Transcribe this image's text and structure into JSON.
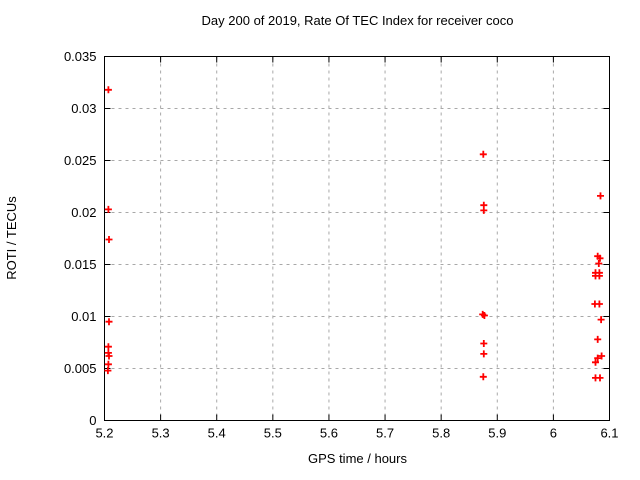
{
  "chart_data": {
    "type": "scatter",
    "title": "Day 200 of 2019, Rate Of TEC Index for receiver coco",
    "xlabel": "GPS time / hours",
    "ylabel": "ROTI / TECUs",
    "xlim": [
      5.2,
      6.1
    ],
    "ylim": [
      0,
      0.035
    ],
    "xticks": {
      "values": [
        5.2,
        5.3,
        5.4,
        5.5,
        5.6,
        5.7,
        5.8,
        5.9,
        6.0,
        6.1
      ],
      "labels": [
        "5.2",
        "5.3",
        "5.4",
        "5.5",
        "5.6",
        "5.7",
        "5.8",
        "5.9",
        "6",
        "6.1"
      ]
    },
    "yticks": {
      "values": [
        0,
        0.005,
        0.01,
        0.015,
        0.02,
        0.025,
        0.03,
        0.035
      ],
      "labels": [
        "0",
        "0.005",
        "0.01",
        "0.015",
        "0.02",
        "0.025",
        "0.03",
        "0.035"
      ]
    },
    "grid": true,
    "grid_style": "dashed",
    "legend_position": "none",
    "marker": "plus",
    "marker_color": "#ff0000",
    "grid_color": "#a8a8a8",
    "axis_color": "#000000",
    "background_color": "#ffffff",
    "series": [
      {
        "name": "ROTI",
        "points": [
          [
            5.207,
            0.0318
          ],
          [
            5.207,
            0.0203
          ],
          [
            5.208,
            0.0174
          ],
          [
            5.208,
            0.0095
          ],
          [
            5.207,
            0.0071
          ],
          [
            5.207,
            0.0065
          ],
          [
            5.208,
            0.0062
          ],
          [
            5.207,
            0.0054
          ],
          [
            5.206,
            0.0048
          ],
          [
            5.875,
            0.0256
          ],
          [
            5.876,
            0.0207
          ],
          [
            5.876,
            0.0202
          ],
          [
            5.874,
            0.0102
          ],
          [
            5.877,
            0.0101
          ],
          [
            5.876,
            0.0074
          ],
          [
            5.876,
            0.0064
          ],
          [
            5.875,
            0.0042
          ],
          [
            6.084,
            0.0216
          ],
          [
            6.079,
            0.0158
          ],
          [
            6.083,
            0.0156
          ],
          [
            6.081,
            0.0151
          ],
          [
            6.075,
            0.0142
          ],
          [
            6.082,
            0.0142
          ],
          [
            6.075,
            0.0139
          ],
          [
            6.082,
            0.0139
          ],
          [
            6.074,
            0.0112
          ],
          [
            6.082,
            0.0112
          ],
          [
            6.085,
            0.0097
          ],
          [
            6.079,
            0.0078
          ],
          [
            6.086,
            0.0062
          ],
          [
            6.079,
            0.006
          ],
          [
            6.075,
            0.0056
          ],
          [
            6.075,
            0.0041
          ],
          [
            6.083,
            0.0041
          ]
        ]
      }
    ]
  }
}
